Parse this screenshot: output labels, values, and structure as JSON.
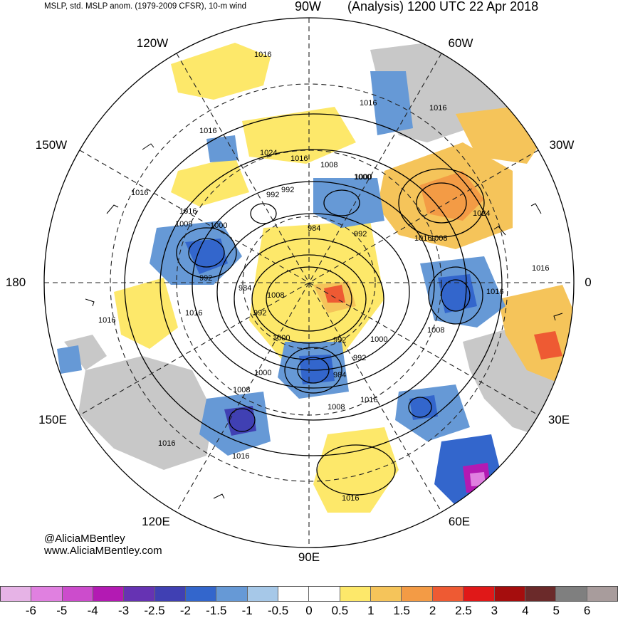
{
  "header": {
    "left_title": "MSLP, std. MSLP anom. (1979-2009 CFSR), 10-m wind",
    "center_label": "90W",
    "right_title": "(Analysis) 1200 UTC 22 Apr 2018"
  },
  "longitude_labels": {
    "w120": "120W",
    "w60": "60W",
    "w150": "150W",
    "w30": "30W",
    "l180": "180",
    "l0": "0",
    "e150": "150E",
    "e30": "30E",
    "e120": "120E",
    "e60": "60E",
    "e90": "90E"
  },
  "contour_labels": [
    "1016",
    "1024",
    "1016",
    "1016",
    "1008",
    "992",
    "1000",
    "1008",
    "984",
    "992",
    "1000",
    "992",
    "984",
    "1008",
    "992",
    "1016",
    "1008",
    "1000",
    "992",
    "1016",
    "1016",
    "1016",
    "1016",
    "1008",
    "1000",
    "984",
    "992",
    "1016",
    "1008",
    "1016",
    "1008",
    "1016",
    "1016",
    "1016",
    "1024",
    "1016",
    "1016",
    "1016",
    "1000",
    "992",
    "1000"
  ],
  "credits": {
    "handle": "@AliciaMBentley",
    "site": "www.AliciaMBentley.com"
  },
  "colorbar": {
    "colors": [
      "#e6b3e6",
      "#e080e0",
      "#cc4ccc",
      "#b31ab3",
      "#6633b3",
      "#4040b3",
      "#3366cc",
      "#6699d6",
      "#a6c8e8",
      "#ffffff",
      "#ffffff",
      "#fde86a",
      "#f5c45a",
      "#f39b45",
      "#ee5a33",
      "#e01818",
      "#a50d0d",
      "#6b2a2a",
      "#7f7f7f",
      "#a89c9c"
    ],
    "ticks": [
      "-6",
      "-5",
      "-4",
      "-3",
      "-2.5",
      "-2",
      "-1.5",
      "-1",
      "-0.5",
      "0",
      "0.5",
      "1",
      "1.5",
      "2",
      "2.5",
      "3",
      "4",
      "5",
      "6"
    ]
  }
}
